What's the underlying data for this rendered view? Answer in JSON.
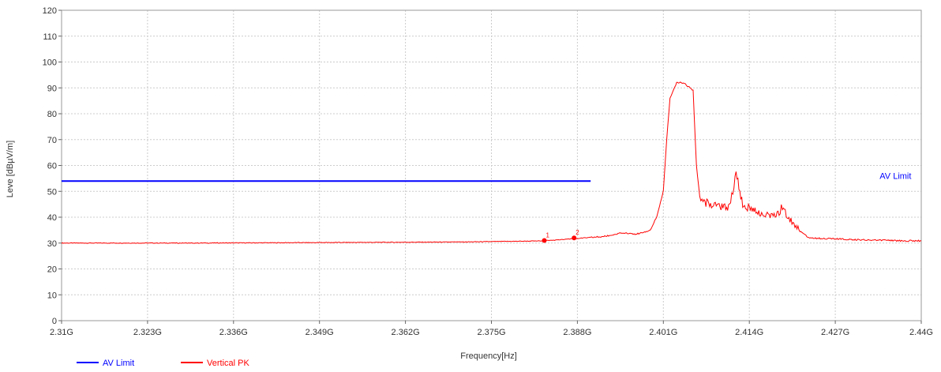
{
  "chart_data": {
    "type": "line",
    "xlabel": "Frequency[Hz]",
    "ylabel": "Leve [dBµV/m]",
    "xlim": [
      2.31,
      2.44
    ],
    "ylim": [
      0,
      120
    ],
    "x_unit": "GHz",
    "x_ticks": [
      "2.31G",
      "2.323G",
      "2.336G",
      "2.349G",
      "2.362G",
      "2.375G",
      "2.388G",
      "2.401G",
      "2.414G",
      "2.427G",
      "2.44G"
    ],
    "x_tick_values": [
      2.31,
      2.323,
      2.336,
      2.349,
      2.362,
      2.375,
      2.388,
      2.401,
      2.414,
      2.427,
      2.44
    ],
    "y_ticks": [
      0,
      10,
      20,
      30,
      40,
      50,
      60,
      70,
      80,
      90,
      100,
      110,
      120
    ],
    "grid": true,
    "legend_position": "bottom-left",
    "series": [
      {
        "name": "AV Limit",
        "color": "#0000ff",
        "x": [
          2.31,
          2.39
        ],
        "y": [
          54,
          54
        ]
      },
      {
        "name": "Vertical PK",
        "color": "#ff0000",
        "x": [
          2.31,
          2.33,
          2.35,
          2.37,
          2.382,
          2.385,
          2.388,
          2.392,
          2.395,
          2.397,
          2.399,
          2.4,
          2.401,
          2.4015,
          2.402,
          2.403,
          2.404,
          2.4055,
          2.406,
          2.4065,
          2.407,
          2.408,
          2.41,
          2.411,
          2.4115,
          2.412,
          2.413,
          2.415,
          2.417,
          2.4185,
          2.419,
          2.42,
          2.4215,
          2.423,
          2.428,
          2.435,
          2.44
        ],
        "y": [
          30,
          30,
          30.2,
          30.4,
          30.8,
          31.2,
          31.8,
          32.5,
          34,
          33.5,
          35,
          40,
          50,
          70,
          86,
          92,
          92,
          89,
          60,
          48,
          46,
          45,
          44,
          44,
          50,
          57,
          45,
          42,
          41,
          42,
          44,
          40,
          35,
          32,
          31.5,
          31,
          30.8
        ]
      }
    ],
    "markers": [
      {
        "label": "1",
        "x": 2.383,
        "y": 31
      },
      {
        "label": "2",
        "x": 2.3875,
        "y": 32
      }
    ],
    "annotations": [
      {
        "text": "AV Limit",
        "x": 2.4385,
        "y": 56
      }
    ]
  },
  "legend": [
    {
      "label": "AV Limit",
      "color": "#0000ff"
    },
    {
      "label": "Vertical PK",
      "color": "#ff0000"
    }
  ]
}
